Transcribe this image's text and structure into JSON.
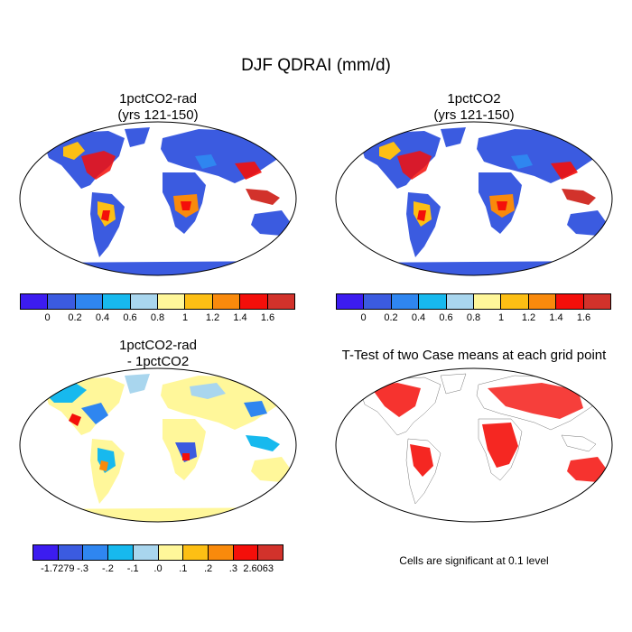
{
  "figure": {
    "title": "DJF QDRAI (mm/d)",
    "panels": [
      {
        "title_line1": "1pctCO2-rad",
        "title_line2": "(yrs 121-150)"
      },
      {
        "title_line1": "1pctCO2",
        "title_line2": "(yrs 121-150)"
      },
      {
        "title_line1": "1pctCO2-rad",
        "title_line2": "- 1pctCO2"
      },
      {
        "title_line1": "T-Test of two Case means at each grid point",
        "title_line2": ""
      }
    ],
    "note": "Cells are significant at 0.1 level"
  },
  "colorbar_top": {
    "colors": [
      "#3c1cf0",
      "#3b5be0",
      "#2f86f0",
      "#17b9ee",
      "#a9d6ee",
      "#fff79a",
      "#fdbf14",
      "#f98a0c",
      "#f40f0a",
      "#d2322b"
    ],
    "ticks": [
      "0",
      "0.2",
      "0.4",
      "0.6",
      "0.8",
      "1",
      "1.2",
      "1.4",
      "1.6"
    ]
  },
  "colorbar_diff": {
    "colors": [
      "#3c1cf0",
      "#3b5be0",
      "#2f86f0",
      "#17b9ee",
      "#a9d6ee",
      "#fff79a",
      "#fdbf14",
      "#f98a0c",
      "#f40f0a",
      "#d2322b"
    ],
    "ticks": [
      "-1.7279",
      "-.3",
      "-.2",
      "-.1",
      ".0",
      ".1",
      ".2",
      ".3",
      "2.6063"
    ]
  },
  "map_colors": {
    "ocean": "#ffffff",
    "low": "#3b5be0",
    "mid": "#2f86f0",
    "high": "#f40f0a",
    "diff_base": "#fff79a",
    "signif": "#f40f0a",
    "ice": "#3b5be0",
    "diff_ice": "#fff79a"
  }
}
